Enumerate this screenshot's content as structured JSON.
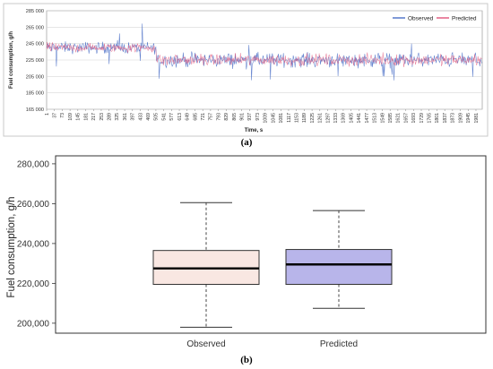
{
  "figure": {
    "label_a": "(a)",
    "label_b": "(b)"
  },
  "chart_data": [
    {
      "type": "line",
      "panel": "a",
      "xlabel": "Time, s",
      "ylabel": "Fuel consumption, g/h",
      "ylim": [
        165000,
        285000
      ],
      "yticks": [
        "285 000",
        "265 000",
        "245 000",
        "225 000",
        "205 000",
        "185 000",
        "165 000"
      ],
      "yticks_values": [
        285000,
        265000,
        245000,
        225000,
        205000,
        185000,
        165000
      ],
      "xticks": [
        "1",
        "37",
        "73",
        "109",
        "145",
        "181",
        "217",
        "253",
        "289",
        "325",
        "361",
        "397",
        "433",
        "469",
        "505",
        "541",
        "577",
        "613",
        "649",
        "685",
        "721",
        "757",
        "793",
        "829",
        "865",
        "901",
        "937",
        "973",
        "1009",
        "1045",
        "1081",
        "1117",
        "1153",
        "1189",
        "1225",
        "1261",
        "1297",
        "1333",
        "1369",
        "1405",
        "1441",
        "1477",
        "1513",
        "1549",
        "1585",
        "1621",
        "1657",
        "1693",
        "1729",
        "1765",
        "1801",
        "1837",
        "1873",
        "1909",
        "1945",
        "1981"
      ],
      "xlim": [
        1,
        2010
      ],
      "grid": true,
      "legend_position": "top-right",
      "regimes": [
        {
          "x_start": 1,
          "x_end": 505,
          "mean": 240000,
          "spread": 9000
        },
        {
          "x_start": 505,
          "x_end": 2010,
          "mean": 225000,
          "spread": 11000
        }
      ],
      "series": [
        {
          "name": "Observed",
          "color": "#4a6fc7"
        },
        {
          "name": "Predicted",
          "color": "#e0547a"
        }
      ]
    },
    {
      "type": "box",
      "panel": "b",
      "ylabel": "Fuel consumption, g/h",
      "ylim": [
        195000,
        284000
      ],
      "yticks": [
        "200,000",
        "220,000",
        "240,000",
        "260,000",
        "280,000"
      ],
      "yticks_values": [
        200000,
        220000,
        240000,
        260000,
        280000
      ],
      "categories": [
        "Observed",
        "Predicted"
      ],
      "boxes": [
        {
          "name": "Observed",
          "whisker_low": 198000,
          "q1": 219500,
          "median": 227500,
          "q3": 236500,
          "whisker_high": 260500,
          "fill": "#f9e7e2"
        },
        {
          "name": "Predicted",
          "whisker_low": 207500,
          "q1": 219500,
          "median": 229500,
          "q3": 237000,
          "whisker_high": 256500,
          "fill": "#b8b5ea"
        }
      ]
    }
  ]
}
